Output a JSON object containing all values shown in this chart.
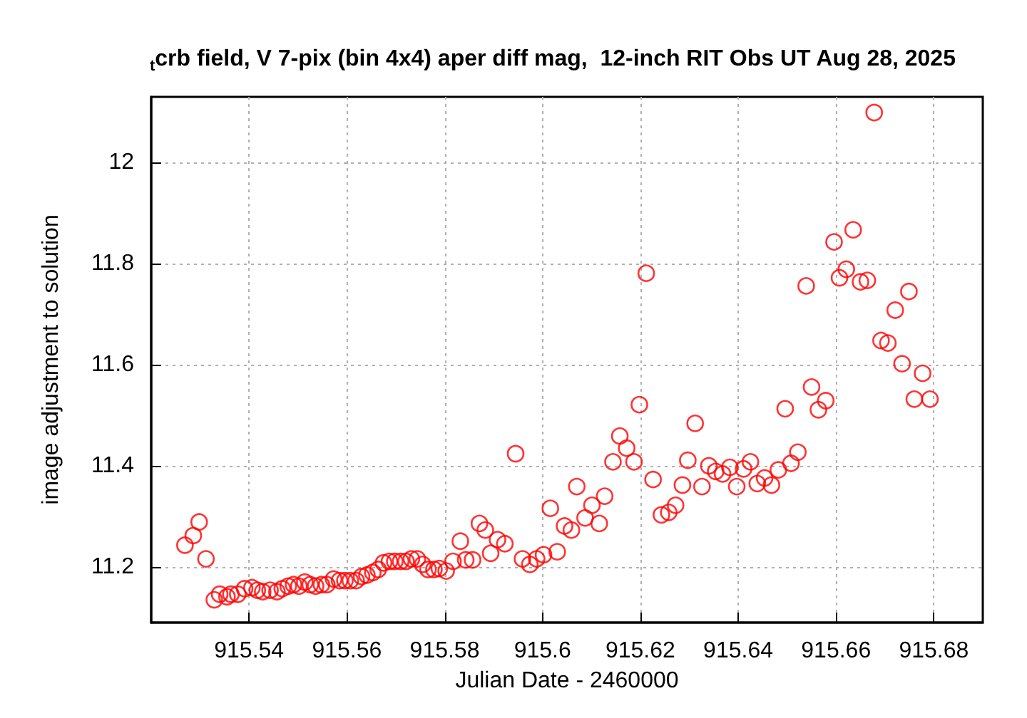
{
  "chart_data": {
    "type": "scatter",
    "title": "$_{t}$crb field, V 7-pix (bin 4x4) aper diff mag,  12-inch RIT Obs UT Aug 28, 2025",
    "xlabel": "Julian Date - 2460000",
    "ylabel": "image adjustment to solution",
    "x": [
      915.5269,
      915.5286,
      915.5298,
      915.5312,
      915.5329,
      915.534,
      915.5355,
      915.5363,
      915.5377,
      915.5391,
      915.5406,
      915.5417,
      915.5428,
      915.5443,
      915.5457,
      915.5468,
      915.548,
      915.5491,
      915.5502,
      915.5514,
      915.5525,
      915.5536,
      915.5548,
      915.5559,
      915.5573,
      915.5585,
      915.5596,
      915.5607,
      915.5619,
      915.563,
      915.5641,
      915.5653,
      915.5664,
      915.5675,
      915.5687,
      915.5698,
      915.571,
      915.5721,
      915.5732,
      915.5744,
      915.5755,
      915.5766,
      915.5778,
      915.5789,
      915.5803,
      915.5817,
      915.5832,
      915.5843,
      915.5857,
      915.5871,
      915.5883,
      915.5894,
      915.5908,
      915.5923,
      915.5945,
      915.5959,
      915.5974,
      915.5988,
      915.6002,
      915.6016,
      915.603,
      915.6045,
      915.6059,
      915.607,
      915.6087,
      915.6101,
      915.6116,
      915.6127,
      915.6144,
      915.6158,
      915.6172,
      915.6187,
      915.6198,
      915.6212,
      915.6226,
      915.6243,
      915.6258,
      915.6272,
      915.6286,
      915.6297,
      915.6312,
      915.6326,
      915.634,
      915.6354,
      915.6368,
      915.6383,
      915.6397,
      915.6411,
      915.6425,
      915.6439,
      915.6454,
      915.6468,
      915.6482,
      915.6496,
      915.6508,
      915.6522,
      915.6539,
      915.655,
      915.6564,
      915.6579,
      915.6596,
      915.6607,
      915.6621,
      915.6635,
      915.665,
      915.6664,
      915.6678,
      915.6692,
      915.6706,
      915.6721,
      915.6735,
      915.6749,
      915.676,
      915.6777,
      915.6792
    ],
    "values": [
      11.243,
      11.262,
      11.289,
      11.216,
      11.135,
      11.146,
      11.141,
      11.146,
      11.146,
      11.157,
      11.159,
      11.154,
      11.151,
      11.154,
      11.151,
      11.157,
      11.162,
      11.165,
      11.162,
      11.17,
      11.165,
      11.162,
      11.165,
      11.165,
      11.176,
      11.173,
      11.173,
      11.173,
      11.173,
      11.181,
      11.184,
      11.189,
      11.195,
      11.208,
      11.211,
      11.211,
      11.211,
      11.211,
      11.216,
      11.216,
      11.205,
      11.195,
      11.195,
      11.197,
      11.192,
      11.211,
      11.251,
      11.214,
      11.214,
      11.286,
      11.273,
      11.227,
      11.254,
      11.246,
      11.424,
      11.216,
      11.205,
      11.216,
      11.224,
      11.316,
      11.23,
      11.281,
      11.273,
      11.359,
      11.297,
      11.322,
      11.286,
      11.34,
      11.408,
      11.459,
      11.435,
      11.408,
      11.521,
      11.781,
      11.373,
      11.303,
      11.308,
      11.322,
      11.362,
      11.411,
      11.484,
      11.359,
      11.4,
      11.389,
      11.384,
      11.397,
      11.359,
      11.394,
      11.408,
      11.365,
      11.376,
      11.362,
      11.392,
      11.513,
      11.405,
      11.427,
      11.756,
      11.556,
      11.511,
      11.529,
      11.843,
      11.772,
      11.789,
      11.867,
      11.764,
      11.767,
      12.099,
      11.648,
      11.643,
      11.708,
      11.602,
      11.745,
      11.532,
      11.583,
      11.532
    ],
    "color": "#ff0000",
    "marker": "circle",
    "grid": true,
    "xlim": [
      915.52,
      915.69
    ],
    "xticks": [
      915.54,
      915.56,
      915.58,
      915.6,
      915.62,
      915.64,
      915.66,
      915.68
    ],
    "ylim": [
      11.09,
      12.13
    ],
    "yticks": [
      11.2,
      11.4,
      11.6,
      11.8,
      12
    ]
  }
}
